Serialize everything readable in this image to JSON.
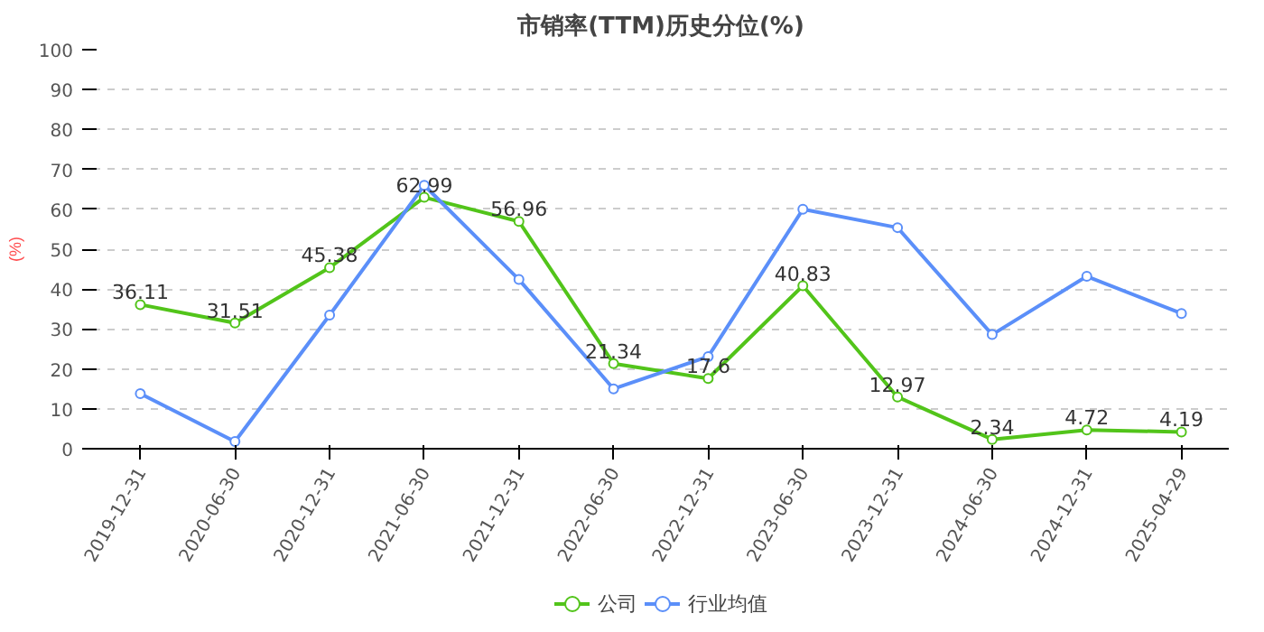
{
  "chart_data": {
    "type": "line",
    "title": "市销率(TTM)历史分位(%)",
    "ylabel": "(%)",
    "categories": [
      "2019-12-31",
      "2020-06-30",
      "2020-12-31",
      "2021-06-30",
      "2021-12-31",
      "2022-06-30",
      "2022-12-31",
      "2023-06-30",
      "2023-12-31",
      "2024-06-30",
      "2024-12-31",
      "2025-04-29"
    ],
    "series": [
      {
        "name": "公司",
        "color": "#52c41a",
        "values": [
          36.11,
          31.51,
          45.38,
          62.99,
          56.96,
          21.34,
          17.6,
          40.83,
          12.97,
          2.34,
          4.72,
          4.19
        ],
        "data_labels": true
      },
      {
        "name": "行业均值",
        "color": "#5b8ff9",
        "values": [
          13.8,
          1.8,
          33.5,
          66,
          42.4,
          15,
          23.1,
          60,
          55.4,
          28.6,
          43.2,
          33.9
        ]
      }
    ],
    "ylim": [
      0,
      100
    ],
    "yticks": [
      0,
      10,
      20,
      30,
      40,
      50,
      60,
      70,
      80,
      90,
      100
    ],
    "grid": "y",
    "legend": "bottom",
    "marker": "circle",
    "line_style": "solid"
  }
}
